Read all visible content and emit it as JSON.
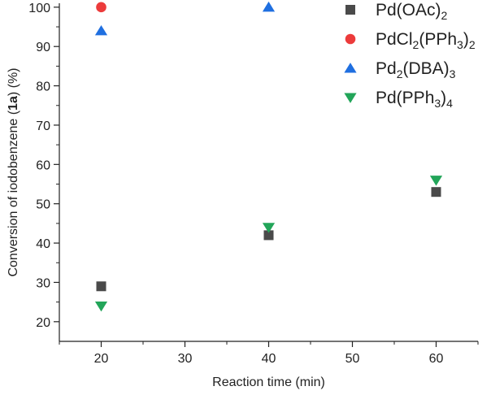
{
  "chart_data": {
    "type": "scatter",
    "title": "",
    "xlabel": "Reaction time (min)",
    "ylabel": {
      "prefix": "Conversion of iodobenzene (",
      "bold": "1a",
      "suffix": ") (%)"
    },
    "xlim": [
      15,
      65
    ],
    "ylim": [
      15,
      101
    ],
    "x_ticks": [
      20,
      30,
      40,
      50,
      60
    ],
    "y_ticks": [
      20,
      30,
      40,
      50,
      60,
      70,
      80,
      90,
      100
    ],
    "grid": false,
    "legend_position": "top-right",
    "series": [
      {
        "name": "Pd(OAc)2",
        "label_parts": [
          [
            "Pd(OAc)",
            "n"
          ],
          [
            "2",
            "sub"
          ]
        ],
        "marker": "square",
        "color": "#4a4a4a",
        "points": [
          {
            "x": 20,
            "y": 29
          },
          {
            "x": 40,
            "y": 42
          },
          {
            "x": 60,
            "y": 53
          }
        ]
      },
      {
        "name": "PdCl2(PPh3)2",
        "label_parts": [
          [
            "PdCl",
            "n"
          ],
          [
            "2",
            "sub"
          ],
          [
            "(PPh",
            "n"
          ],
          [
            "3",
            "sub"
          ],
          [
            ")",
            "n"
          ],
          [
            "2",
            "sub"
          ]
        ],
        "marker": "circle",
        "color": "#ec3b3b",
        "points": [
          {
            "x": 20,
            "y": 100
          }
        ]
      },
      {
        "name": "Pd2(DBA)3",
        "label_parts": [
          [
            "Pd",
            "n"
          ],
          [
            "2",
            "sub"
          ],
          [
            "(DBA)",
            "n"
          ],
          [
            "3",
            "sub"
          ]
        ],
        "marker": "triangle-up",
        "color": "#1f6fe0",
        "points": [
          {
            "x": 20,
            "y": 94
          },
          {
            "x": 40,
            "y": 100
          }
        ]
      },
      {
        "name": "Pd(PPh3)4",
        "label_parts": [
          [
            "Pd(PPh",
            "n"
          ],
          [
            "3",
            "sub"
          ],
          [
            ")",
            "n"
          ],
          [
            "4",
            "sub"
          ]
        ],
        "marker": "triangle-down",
        "color": "#22a559",
        "points": [
          {
            "x": 20,
            "y": 24
          },
          {
            "x": 40,
            "y": 44
          },
          {
            "x": 60,
            "y": 56
          }
        ]
      }
    ]
  }
}
